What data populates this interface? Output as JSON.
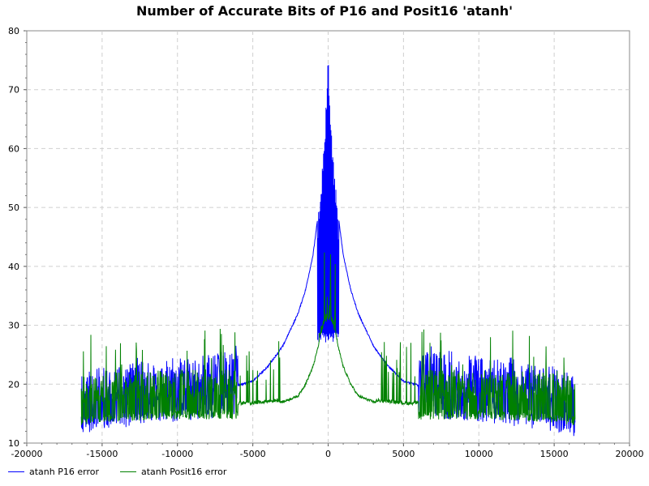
{
  "chart_data": {
    "type": "line",
    "title": "Number of Accurate Bits of P16 and Posit16 'atanh'",
    "xlabel": "",
    "ylabel": "",
    "xlim": [
      -20000,
      20000
    ],
    "ylim": [
      10,
      80
    ],
    "xticks": [
      -20000,
      -15000,
      -10000,
      -5000,
      0,
      5000,
      10000,
      15000,
      20000
    ],
    "yticks": [
      10,
      20,
      30,
      40,
      50,
      60,
      70,
      80
    ],
    "grid": true,
    "legend_position": "bottom-left",
    "series": [
      {
        "name": "atanh P16 error",
        "color": "#0000ff",
        "envelope": {
          "x": [
            -16384,
            -15000,
            -12000,
            -10000,
            -8000,
            -6000,
            -5000,
            -4000,
            -3000,
            -2000,
            -1500,
            -1000,
            -600,
            -400,
            -200,
            0,
            200,
            400,
            600,
            1000,
            1500,
            2000,
            3000,
            4000,
            5000,
            6000,
            8000,
            10000,
            12000,
            15000,
            16384
          ],
          "y": [
            16,
            17,
            18,
            18.5,
            19,
            19.8,
            20.5,
            23,
            26.5,
            32,
            36,
            42,
            50,
            57,
            64,
            76,
            64,
            57,
            50,
            42,
            36,
            32,
            26.5,
            23,
            20.5,
            19.8,
            19,
            18.5,
            18,
            17,
            16
          ]
        },
        "noise_low": [
          11,
          27
        ],
        "noise_high": [
          23,
          76
        ]
      },
      {
        "name": "atanh Posit16 error",
        "color": "#008000",
        "envelope": {
          "x": [
            -16384,
            -15000,
            -12000,
            -10000,
            -8000,
            -6000,
            -5000,
            -4000,
            -3000,
            -2500,
            -2000,
            -1500,
            -1000,
            -600,
            -300,
            0,
            300,
            600,
            1000,
            1500,
            2000,
            2500,
            3000,
            4000,
            5000,
            6000,
            8000,
            10000,
            12000,
            15000,
            16384
          ],
          "y": [
            15.5,
            16,
            16.3,
            16.5,
            16.5,
            16.5,
            16.5,
            16.8,
            17,
            17.5,
            18,
            20,
            23,
            27,
            30,
            31,
            30,
            27,
            23,
            20,
            18,
            17.5,
            17,
            16.8,
            16.5,
            16.5,
            16.5,
            16.5,
            16.3,
            16,
            15.5
          ]
        },
        "noise_low": [
          14,
          16
        ],
        "noise_high": [
          20,
          29
        ]
      }
    ]
  }
}
